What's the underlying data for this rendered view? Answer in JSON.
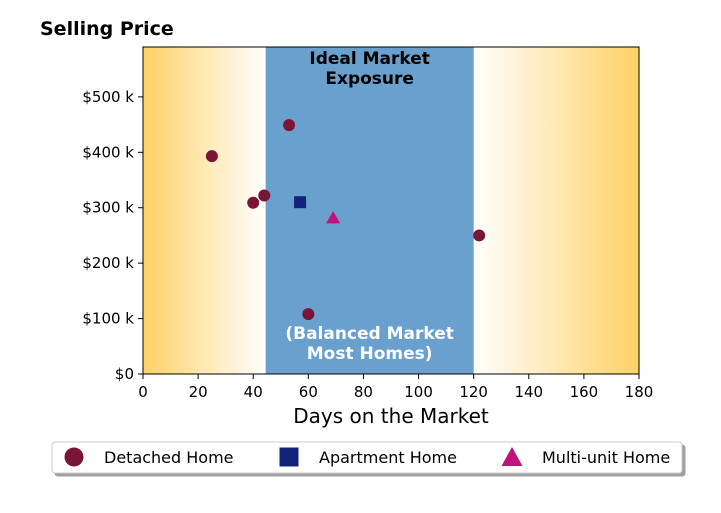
{
  "chart_data": {
    "type": "scatter",
    "ylabel": "Selling Price",
    "xlabel": "Days on the Market",
    "xlim": [
      0,
      180
    ],
    "ylim": [
      0,
      590000
    ],
    "x_ticks": [
      0,
      20,
      40,
      60,
      80,
      100,
      120,
      140,
      160,
      180
    ],
    "x_tick_labels": [
      "0",
      "20",
      "40",
      "60",
      "80",
      "100",
      "120",
      "140",
      "160",
      "180"
    ],
    "y_ticks": [
      0,
      100000,
      200000,
      300000,
      400000,
      500000
    ],
    "y_tick_labels": [
      "$0",
      "$100 k",
      "$200 k",
      "$300 k",
      "$400 k",
      "$500 k"
    ],
    "grid": false,
    "legend_position": "bottom",
    "band": {
      "x_range": [
        44.5,
        120
      ],
      "color": "#6aa0cd",
      "label_top_lines": [
        "Ideal Market",
        "Exposure"
      ],
      "label_bottom_lines": [
        "(Balanced Market",
        "Most Homes)"
      ]
    },
    "background_gradient": {
      "edge_color": "#ffd166",
      "center_color": "#ffffff"
    },
    "series": [
      {
        "name": "Detached Home",
        "marker": "circle",
        "color": "#7b1535",
        "points": [
          {
            "x": 25,
            "y": 393000
          },
          {
            "x": 40,
            "y": 309000
          },
          {
            "x": 44,
            "y": 322000
          },
          {
            "x": 53,
            "y": 449000
          },
          {
            "x": 60,
            "y": 108000
          },
          {
            "x": 122,
            "y": 250000
          }
        ]
      },
      {
        "name": "Apartment Home",
        "marker": "square",
        "color": "#14237a",
        "points": [
          {
            "x": 57,
            "y": 310000
          }
        ]
      },
      {
        "name": "Multi-unit Home",
        "marker": "triangle",
        "color": "#c0127a",
        "points": [
          {
            "x": 69,
            "y": 282000
          }
        ]
      }
    ]
  }
}
